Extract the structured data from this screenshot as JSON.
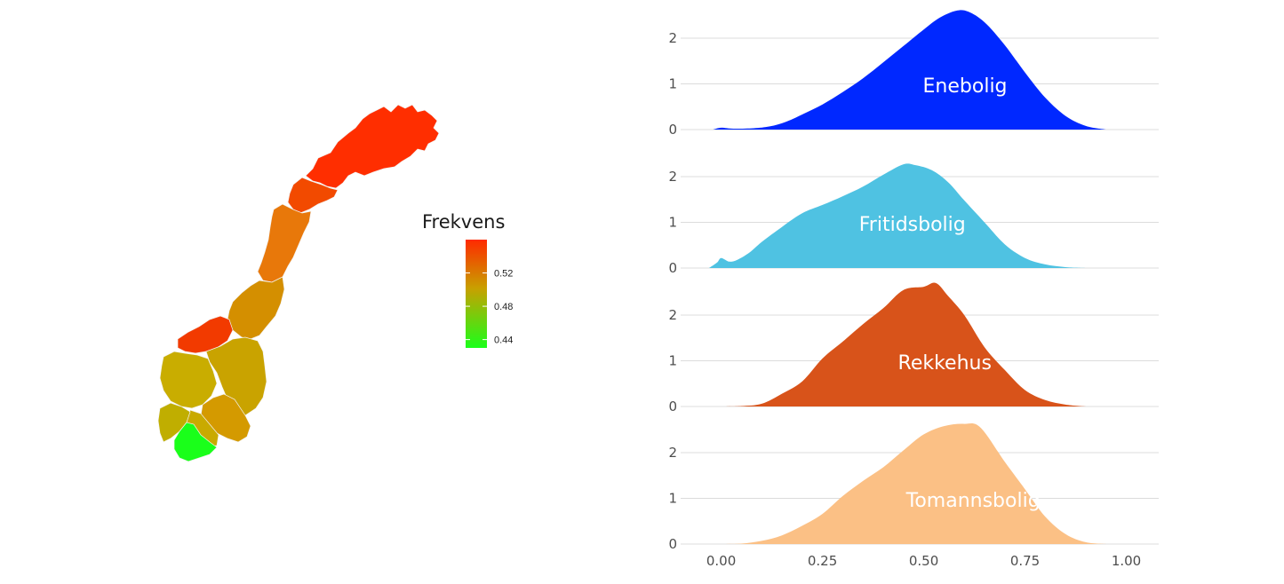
{
  "map": {
    "legend": {
      "title": "Frekvens",
      "range": [
        0.43,
        0.56
      ],
      "ticks": [
        "0.52",
        "0.48",
        "0.44"
      ],
      "tick_values": [
        0.52,
        0.48,
        0.44
      ],
      "colors": {
        "low": "#1aff1a",
        "mid": "#c8a000",
        "high": "#ff2a00"
      }
    }
  },
  "chart_data": {
    "type": "area",
    "subtype": "ridgeline-density",
    "x_ticks": [
      "0.00",
      "0.25",
      "0.50",
      "0.75",
      "1.00"
    ],
    "x_tick_values": [
      0,
      0.25,
      0.5,
      0.75,
      1.0
    ],
    "xlim": [
      -0.1,
      1.08
    ],
    "y_ticks": [
      "0",
      "1",
      "2"
    ],
    "y_tick_values": [
      0,
      1,
      2
    ],
    "ylim": [
      0,
      2.6
    ],
    "grid": true,
    "series": [
      {
        "name": "Enebolig",
        "color": "#0028ff",
        "points": [
          [
            -0.02,
            0.0
          ],
          [
            0.0,
            0.04
          ],
          [
            0.03,
            0.02
          ],
          [
            0.08,
            0.03
          ],
          [
            0.12,
            0.07
          ],
          [
            0.16,
            0.17
          ],
          [
            0.2,
            0.33
          ],
          [
            0.25,
            0.55
          ],
          [
            0.3,
            0.82
          ],
          [
            0.35,
            1.12
          ],
          [
            0.4,
            1.47
          ],
          [
            0.45,
            1.83
          ],
          [
            0.5,
            2.19
          ],
          [
            0.54,
            2.45
          ],
          [
            0.58,
            2.6
          ],
          [
            0.61,
            2.58
          ],
          [
            0.65,
            2.35
          ],
          [
            0.7,
            1.85
          ],
          [
            0.75,
            1.25
          ],
          [
            0.8,
            0.7
          ],
          [
            0.85,
            0.3
          ],
          [
            0.9,
            0.08
          ],
          [
            0.95,
            0.0
          ]
        ]
      },
      {
        "name": "Fritidsbolig",
        "color": "#4fc2e2",
        "points": [
          [
            -0.03,
            0.0
          ],
          [
            -0.01,
            0.12
          ],
          [
            0.0,
            0.22
          ],
          [
            0.02,
            0.14
          ],
          [
            0.04,
            0.18
          ],
          [
            0.07,
            0.34
          ],
          [
            0.1,
            0.57
          ],
          [
            0.15,
            0.9
          ],
          [
            0.2,
            1.2
          ],
          [
            0.25,
            1.38
          ],
          [
            0.3,
            1.57
          ],
          [
            0.35,
            1.78
          ],
          [
            0.4,
            2.04
          ],
          [
            0.45,
            2.27
          ],
          [
            0.48,
            2.25
          ],
          [
            0.52,
            2.14
          ],
          [
            0.56,
            1.88
          ],
          [
            0.6,
            1.48
          ],
          [
            0.65,
            1.0
          ],
          [
            0.7,
            0.52
          ],
          [
            0.75,
            0.22
          ],
          [
            0.8,
            0.08
          ],
          [
            0.85,
            0.02
          ],
          [
            0.9,
            0.0
          ]
        ]
      },
      {
        "name": "Rekkehus",
        "color": "#d8531a",
        "points": [
          [
            0.0,
            0.0
          ],
          [
            0.05,
            0.01
          ],
          [
            0.1,
            0.06
          ],
          [
            0.15,
            0.28
          ],
          [
            0.2,
            0.55
          ],
          [
            0.25,
            1.05
          ],
          [
            0.3,
            1.42
          ],
          [
            0.35,
            1.8
          ],
          [
            0.4,
            2.15
          ],
          [
            0.45,
            2.55
          ],
          [
            0.5,
            2.62
          ],
          [
            0.53,
            2.7
          ],
          [
            0.56,
            2.42
          ],
          [
            0.6,
            2.0
          ],
          [
            0.65,
            1.3
          ],
          [
            0.7,
            0.8
          ],
          [
            0.75,
            0.36
          ],
          [
            0.8,
            0.14
          ],
          [
            0.85,
            0.04
          ],
          [
            0.9,
            0.0
          ]
        ]
      },
      {
        "name": "Tomannsbolig",
        "color": "#fbc085",
        "points": [
          [
            0.0,
            0.0
          ],
          [
            0.05,
            0.01
          ],
          [
            0.1,
            0.07
          ],
          [
            0.15,
            0.19
          ],
          [
            0.2,
            0.4
          ],
          [
            0.25,
            0.66
          ],
          [
            0.3,
            1.05
          ],
          [
            0.35,
            1.38
          ],
          [
            0.4,
            1.68
          ],
          [
            0.45,
            2.05
          ],
          [
            0.5,
            2.4
          ],
          [
            0.55,
            2.58
          ],
          [
            0.6,
            2.63
          ],
          [
            0.64,
            2.55
          ],
          [
            0.7,
            1.8
          ],
          [
            0.75,
            1.2
          ],
          [
            0.8,
            0.6
          ],
          [
            0.85,
            0.22
          ],
          [
            0.9,
            0.04
          ],
          [
            0.95,
            0.0
          ]
        ]
      }
    ]
  }
}
